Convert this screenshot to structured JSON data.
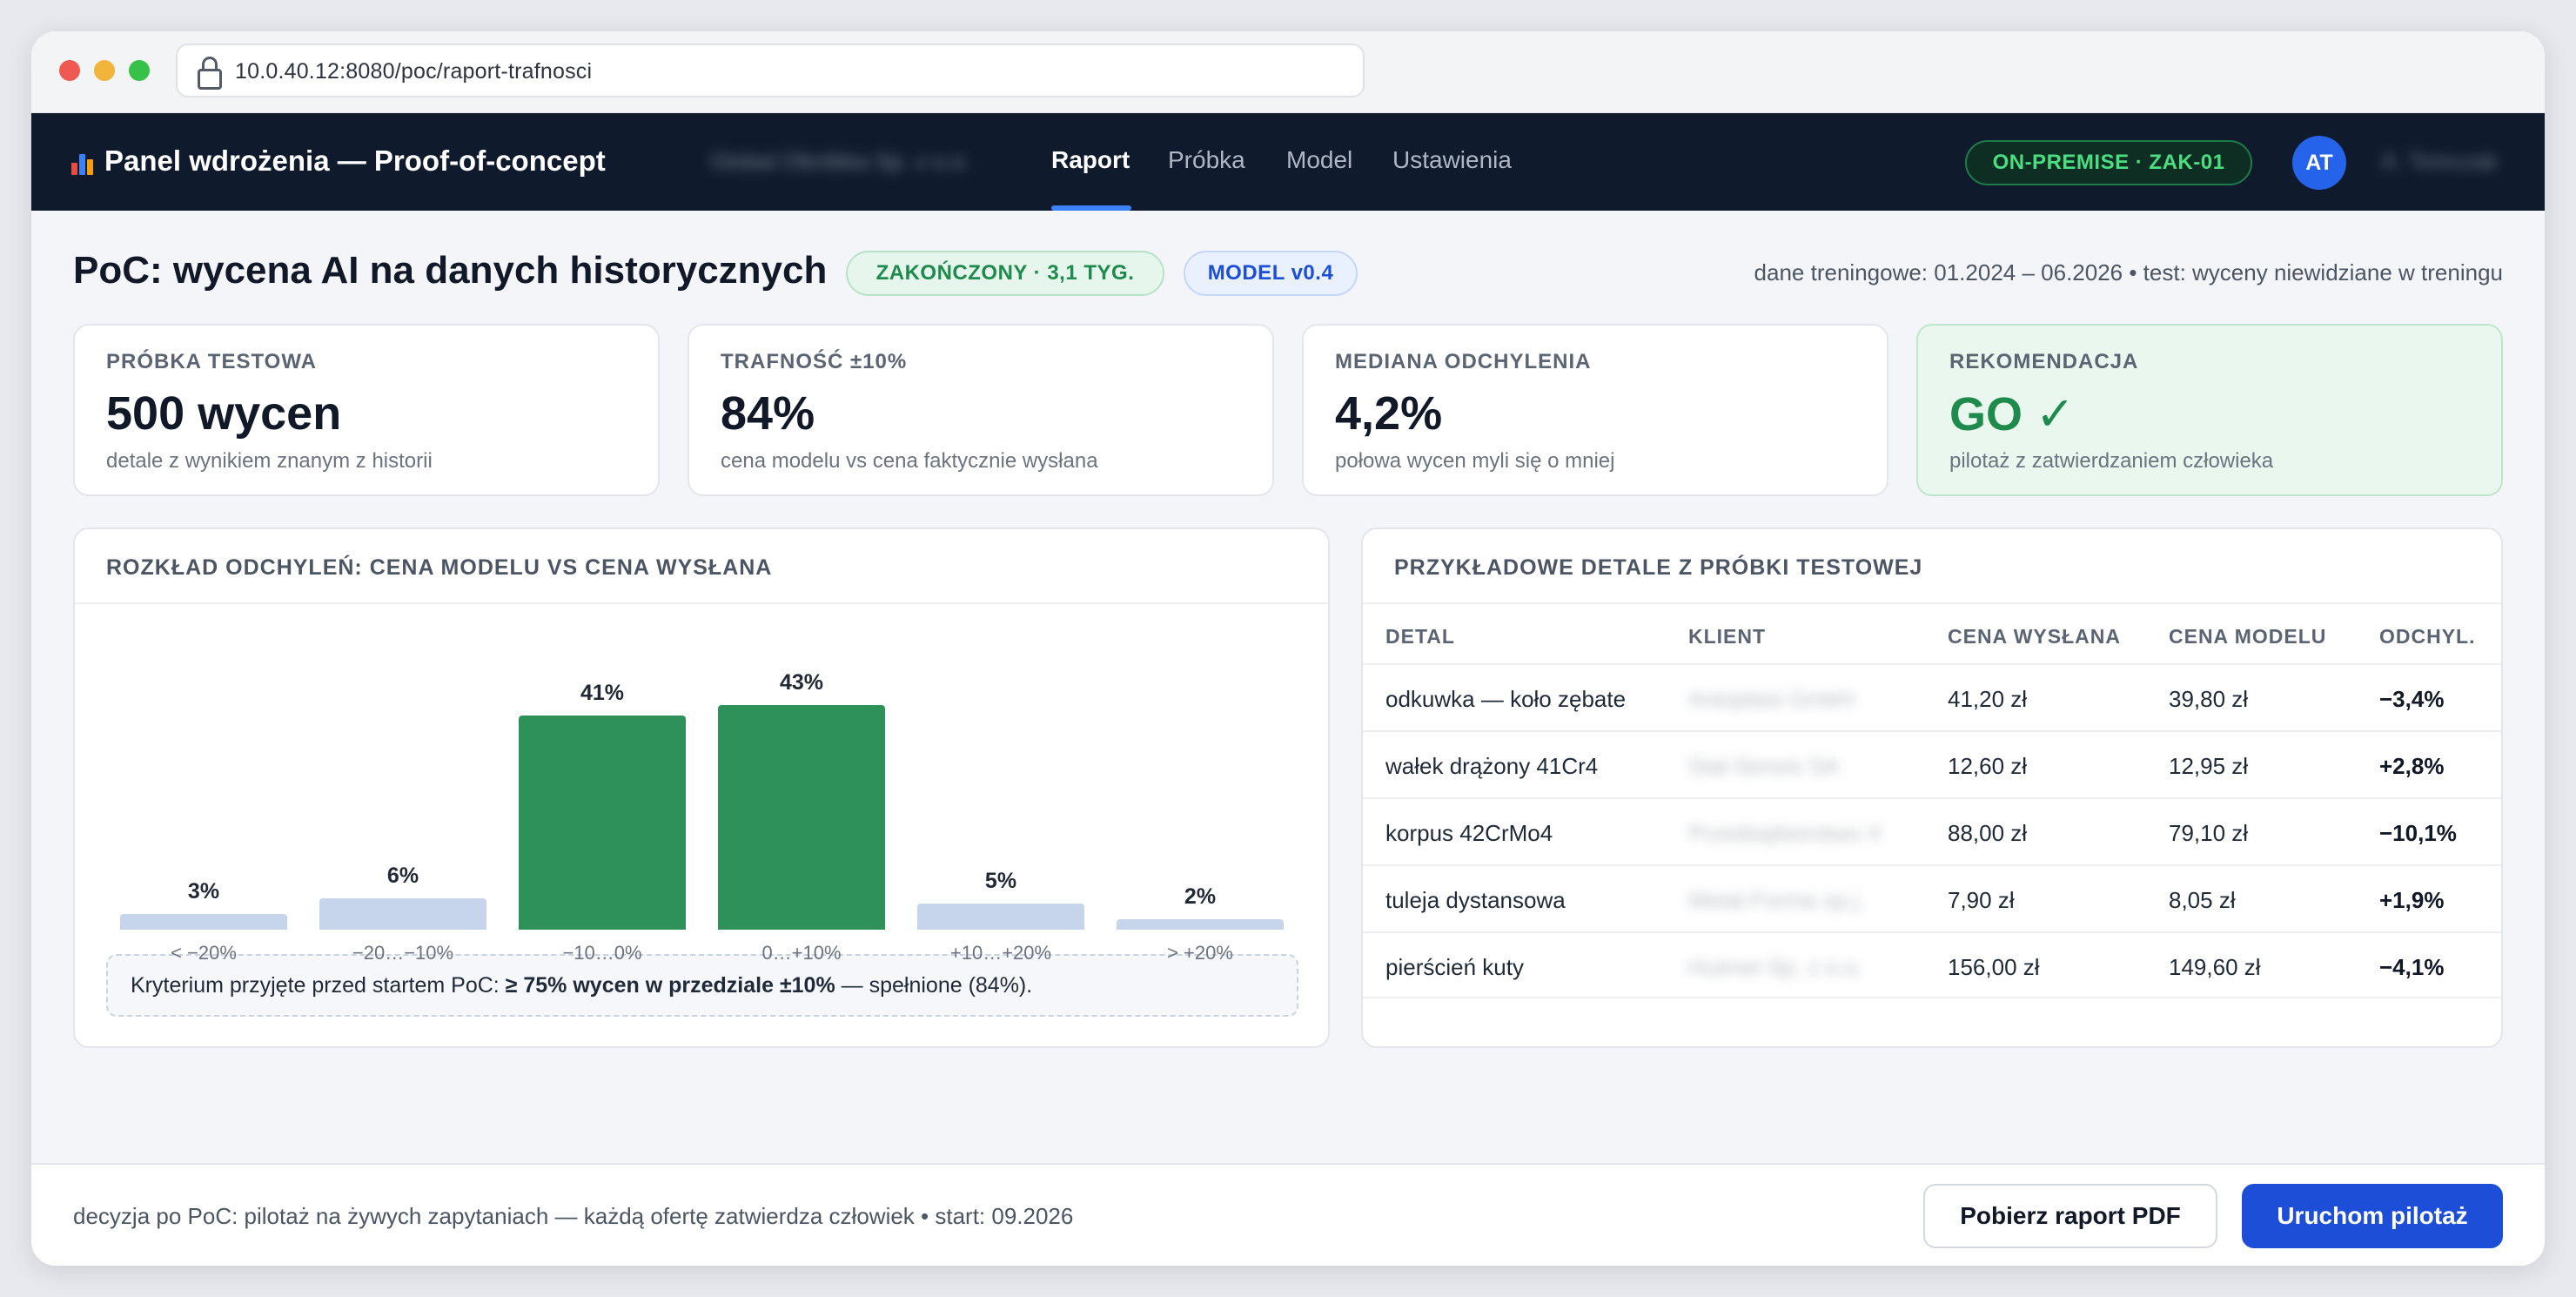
{
  "browser": {
    "url": "10.0.40.12:8080/poc/raport-trafnosci"
  },
  "nav": {
    "brand": "Panel wdrożenia — Proof-of-concept",
    "org_name": "Global Obróbka Sp. z o.o.",
    "tabs": [
      {
        "label": "Raport",
        "active": true
      },
      {
        "label": "Próbka",
        "active": false
      },
      {
        "label": "Model",
        "active": false
      },
      {
        "label": "Ustawienia",
        "active": false
      }
    ],
    "env_badge": "ON-PREMISE · ZAK-01",
    "avatar_initials": "AT",
    "user_name": "A. Tomczak"
  },
  "header": {
    "title": "PoC: wycena AI na danych historycznych",
    "status_badge": "ZAKOŃCZONY · 3,1 TYG.",
    "model_badge": "MODEL v0.4",
    "meta": "dane treningowe: 01.2024 – 06.2026 • test: wyceny niewidziane w treningu"
  },
  "kpis": [
    {
      "label": "PRÓBKA TESTOWA",
      "value": "500 wycen",
      "desc": "detale z wynikiem znanym z historii"
    },
    {
      "label": "TRAFNOŚĆ ±10%",
      "value": "84%",
      "desc": "cena modelu vs cena faktycznie wysłana"
    },
    {
      "label": "MEDIANA ODCHYLENIA",
      "value": "4,2%",
      "desc": "połowa wycen myli się o mniej"
    },
    {
      "label": "REKOMENDACJA",
      "value": "GO ✓",
      "desc": "pilotaż z zatwierdzaniem człowieka"
    }
  ],
  "chart_data": {
    "type": "bar",
    "title": "ROZKŁAD ODCHYLEŃ: CENA MODELU VS CENA WYSŁANA",
    "categories": [
      "< −20%",
      "−20…−10%",
      "−10…0%",
      "0…+10%",
      "+10…+20%",
      "> +20%"
    ],
    "values": [
      3,
      6,
      41,
      43,
      5,
      2
    ],
    "value_labels": [
      "3%",
      "6%",
      "41%",
      "43%",
      "5%",
      "2%"
    ],
    "highlight": [
      false,
      false,
      true,
      true,
      false,
      false
    ],
    "colors": {
      "highlight": "#2e9159",
      "normal": "#c6d4ec"
    },
    "ylim": [
      0,
      43
    ]
  },
  "chart_note": {
    "prefix": "Kryterium przyjęte przed startem PoC: ",
    "bold": "≥ 75% wycen w przedziale ±10%",
    "suffix": " — spełnione (84%)."
  },
  "samples": {
    "title": "PRZYKŁADOWE DETALE Z PRÓBKI TESTOWEJ",
    "columns": [
      "DETAL",
      "KLIENT",
      "CENA WYSŁANA",
      "CENA MODELU",
      "ODCHYL."
    ],
    "rows": [
      {
        "detal": "odkuwka — koło zębate",
        "klient": "Antoplast GmbH",
        "cena_wyslana": "41,20 zł",
        "cena_modelu": "39,80 zł",
        "odchyl": "−3,4%"
      },
      {
        "detal": "wałek drążony 41Cr4",
        "klient": "Stal-Serwis SA",
        "cena_wyslana": "12,60 zł",
        "cena_modelu": "12,95 zł",
        "odchyl": "+2,8%"
      },
      {
        "detal": "korpus 42CrMo4",
        "klient": "Przedsiębiorstwo X",
        "cena_wyslana": "88,00 zł",
        "cena_modelu": "79,10 zł",
        "odchyl": "−10,1%"
      },
      {
        "detal": "tuleja dystansowa",
        "klient": "Metal-Forma sp.j.",
        "cena_wyslana": "7,90 zł",
        "cena_modelu": "8,05 zł",
        "odchyl": "+1,9%"
      },
      {
        "detal": "pierścień kuty",
        "klient": "Hutmet Sp. z o.o.",
        "cena_wyslana": "156,00 zł",
        "cena_modelu": "149,60 zł",
        "odchyl": "−4,1%"
      }
    ]
  },
  "footer": {
    "text": "decyzja po PoC: pilotaż na żywych zapytaniach — każdą ofertę zatwierdza człowiek • start: 09.2026",
    "download_label": "Pobierz raport PDF",
    "start_label": "Uruchom pilotaż"
  }
}
